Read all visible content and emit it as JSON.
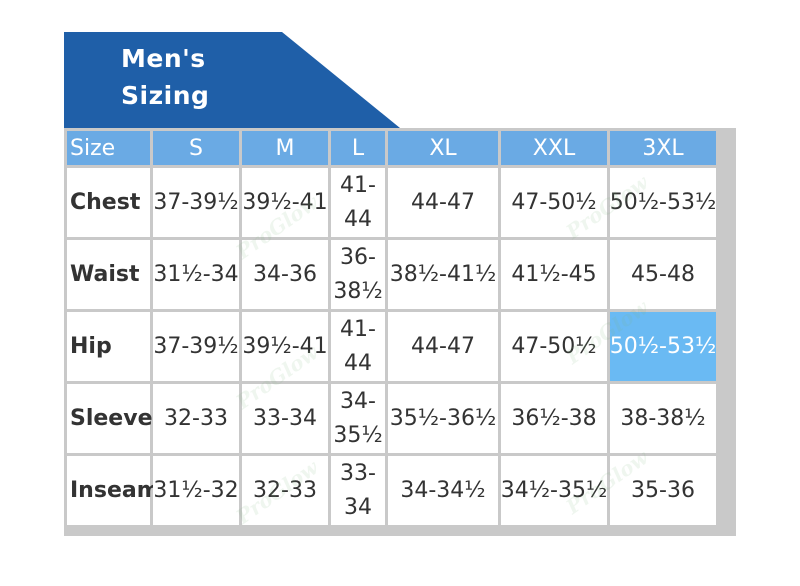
{
  "title": {
    "line1": "Men's",
    "line2": "Sizing"
  },
  "watermark": "ProGlow",
  "colors": {
    "title_bg": "#1f5fa8",
    "header_bg": "#6aaae4",
    "highlight_bg": "#6abaf3",
    "border": "#c9c9c9"
  },
  "table": {
    "headers": [
      "Size",
      "S",
      "M",
      "L",
      "XL",
      "XXL",
      "3XL"
    ],
    "rows": [
      {
        "label": "Chest",
        "values": [
          "37-39½",
          "39½-41",
          "41-44",
          "44-47",
          "47-50½",
          "50½-53½"
        ]
      },
      {
        "label": "Waist",
        "values": [
          "31½-34",
          "34-36",
          "36-38½",
          "38½-41½",
          "41½-45",
          "45-48"
        ]
      },
      {
        "label": "Hip",
        "values": [
          "37-39½",
          "39½-41",
          "41-44",
          "44-47",
          "47-50½",
          "50½-53½"
        ]
      },
      {
        "label": "Sleeve",
        "values": [
          "32-33",
          "33-34",
          "34-35½",
          "35½-36½",
          "36½-38",
          "38-38½"
        ]
      },
      {
        "label": "Inseam",
        "values": [
          "31½-32",
          "32-33",
          "33-34",
          "34-34½",
          "34½-35½",
          "35-36"
        ]
      }
    ]
  }
}
